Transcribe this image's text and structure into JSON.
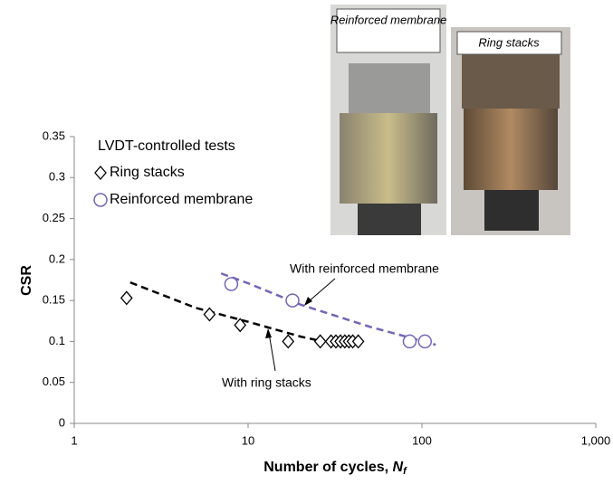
{
  "chart_data": {
    "type": "scatter",
    "ylabel": "CSR",
    "xlabel": {
      "text": "Number of cycles, ",
      "symbol": "N",
      "subscript": "f"
    },
    "log_x": true,
    "xlim": [
      1,
      1000
    ],
    "xticks": [
      1,
      10,
      100,
      {
        "value": 1000,
        "label": "1,000"
      }
    ],
    "ylim": [
      0,
      0.35
    ],
    "yticks": [
      0,
      0.05,
      0.1,
      0.15,
      0.2,
      0.25,
      0.3,
      0.35
    ],
    "grid": false,
    "legend_title": "LVDT-controlled tests",
    "legend": "upper left",
    "series": [
      {
        "name": "Ring stacks",
        "color": "#000000",
        "marker": "diamond",
        "x": [
          2,
          6,
          9,
          17,
          26,
          30,
          32,
          34,
          36,
          38,
          40,
          43
        ],
        "values": [
          0.153,
          0.133,
          0.12,
          0.1,
          0.1,
          0.1,
          0.1,
          0.1,
          0.1,
          0.1,
          0.1,
          0.1
        ]
      },
      {
        "name": "Reinforced membrane",
        "color": "#7565b5",
        "marker": "circle",
        "x": [
          8,
          18,
          85,
          104
        ],
        "values": [
          0.17,
          0.15,
          0.1,
          0.1
        ]
      }
    ],
    "trendlines": [
      {
        "color": "#000000",
        "x": [
          2.1,
          5,
          10,
          20,
          27
        ],
        "values": [
          0.172,
          0.141,
          0.124,
          0.106,
          0.1
        ]
      },
      {
        "color": "#7565b5",
        "x": [
          7,
          10,
          20,
          50,
          120
        ],
        "values": [
          0.183,
          0.171,
          0.145,
          0.118,
          0.096
        ]
      }
    ],
    "annotations": [
      "With reinforced  membrane",
      "With ring stacks"
    ],
    "insets": [
      "Reinforced membrane",
      "Ring stacks"
    ]
  }
}
